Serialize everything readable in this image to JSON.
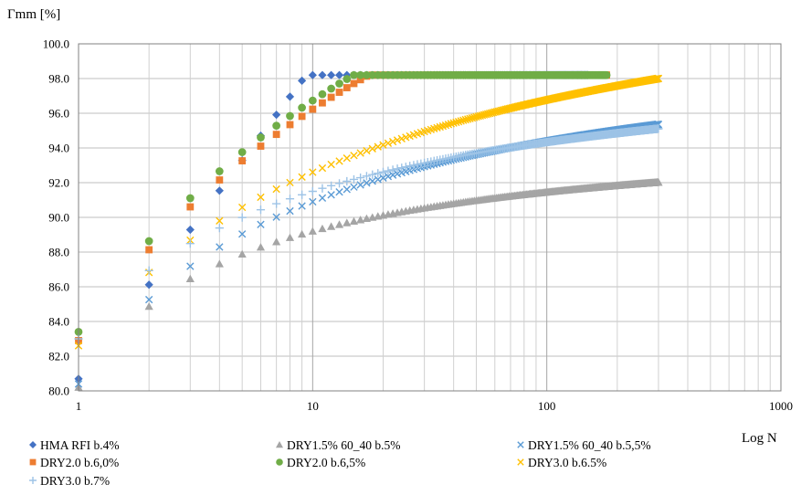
{
  "chart_data": {
    "type": "scatter",
    "title": "",
    "ylabel": "Γmm [%]",
    "xlabel": "Log N",
    "xscale": "log",
    "xlim": [
      1,
      1000
    ],
    "ylim": [
      80,
      100
    ],
    "xticks": [
      "1",
      "10",
      "100",
      "1000"
    ],
    "yticks": [
      "80.0",
      "82.0",
      "84.0",
      "86.0",
      "88.0",
      "90.0",
      "92.0",
      "94.0",
      "96.0",
      "98.0",
      "100.0"
    ],
    "grid": true,
    "legend_position": "bottom",
    "series": [
      {
        "name": "HMA RFI b.4%",
        "marker": "diamond",
        "color": "#4472C4",
        "model": {
          "a": 80.7,
          "k": 18.0,
          "s": 0.0,
          "nmax": 150
        }
      },
      {
        "name": "DRY1.5% 60_40 b.5%",
        "marker": "triangle",
        "color": "#A5A5A5",
        "model": {
          "a": 80.2,
          "k": 22.5,
          "s": 1.5,
          "nmax": 300
        }
      },
      {
        "name": "DRY1.5% 60_40 b.5,5%",
        "marker": "x",
        "color": "#5B9BD5",
        "model": {
          "a": 80.4,
          "k": 21.0,
          "s": 1.0,
          "nmax": 300
        }
      },
      {
        "name": "DRY2.0 b.6,0%",
        "marker": "square",
        "color": "#ED7D31",
        "model": {
          "a": 82.9,
          "k": 20.0,
          "s": 0.5,
          "nmax": 180
        }
      },
      {
        "name": "DRY2.0 b.6,5%",
        "marker": "circle",
        "color": "#70AD47",
        "model": {
          "a": 83.4,
          "k": 20.0,
          "s": 0.5,
          "nmax": 180
        }
      },
      {
        "name": "DRY3.0 b.6.5%",
        "marker": "x",
        "color": "#FFC000",
        "model": {
          "a": 82.6,
          "k": 17.0,
          "s": 0.7,
          "nmax": 300
        }
      },
      {
        "name": "DRY3.0 b.7%",
        "marker": "plus",
        "color": "#9DC3E6",
        "model": {
          "a": 83.0,
          "k": 17.0,
          "s": 1.0,
          "nmax": 300
        }
      }
    ]
  }
}
